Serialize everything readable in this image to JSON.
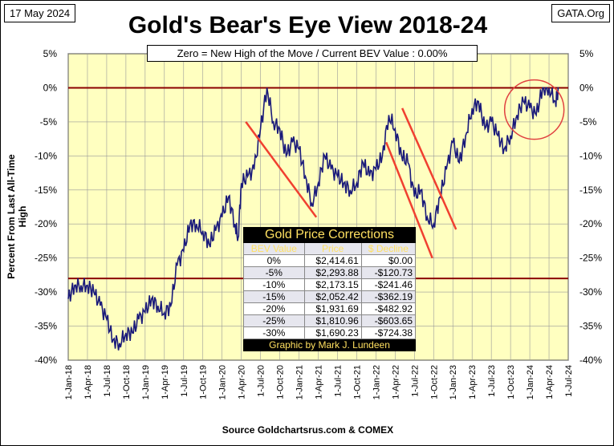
{
  "date": "17 May 2024",
  "source_org": "GATA.Org",
  "source": "Source Goldchartsrus.com & COMEX",
  "chart_data": {
    "type": "line",
    "title": "Gold's Bear's Eye View 2018-24",
    "subtitle": "Zero = New High of the Move / Current  BEV Value : 0.00%",
    "ylabel": "Percent  From  Last  All-Time  High",
    "ylim": [
      -40,
      5
    ],
    "yticks": [
      "5%",
      "0%",
      "-5%",
      "-10%",
      "-15%",
      "-20%",
      "-25%",
      "-30%",
      "-35%",
      "-40%"
    ],
    "xticks": [
      "1-Jan-18",
      "1-Apr-18",
      "1-Jul-18",
      "1-Oct-18",
      "1-Jan-19",
      "1-Apr-19",
      "1-Jul-19",
      "1-Oct-19",
      "1-Jan-20",
      "1-Apr-20",
      "1-Jul-20",
      "1-Oct-20",
      "1-Jan-21",
      "1-Apr-21",
      "1-Jul-21",
      "1-Oct-21",
      "1-Jan-22",
      "1-Apr-22",
      "1-Jul-22",
      "1-Oct-22",
      "1-Jan-23",
      "1-Apr-23",
      "1-Jul-23",
      "1-Oct-23",
      "1-Jan-24",
      "1-Apr-24",
      "1-Jul-24"
    ],
    "x_months_from_jan18": [
      0,
      1,
      2,
      3,
      4,
      5,
      6,
      7,
      8,
      9,
      10,
      11,
      12,
      13,
      14,
      15,
      16,
      17,
      18,
      19,
      20,
      21,
      22,
      23,
      24,
      25,
      26,
      26.5,
      27,
      28,
      29,
      30,
      31,
      32,
      33,
      34,
      35,
      36,
      37,
      38,
      39,
      40,
      41,
      42,
      43,
      44,
      45,
      46,
      47,
      48,
      49,
      50,
      51,
      52,
      53,
      54,
      55,
      56,
      57,
      58,
      59,
      60,
      61,
      62,
      63,
      64,
      65,
      66,
      67,
      68,
      69,
      70,
      71,
      72,
      73,
      74,
      75,
      76,
      76.5
    ],
    "bev_percent": [
      -31,
      -29,
      -29,
      -29,
      -30,
      -32,
      -34,
      -37,
      -37.5,
      -36,
      -36,
      -34,
      -33,
      -31,
      -32,
      -33,
      -32,
      -26,
      -24,
      -20,
      -20,
      -21,
      -23,
      -21,
      -19,
      -16,
      -20,
      -22,
      -14,
      -13,
      -12,
      -6,
      0,
      -5,
      -6,
      -10,
      -8,
      -9,
      -13,
      -17,
      -14,
      -10,
      -12,
      -13,
      -14,
      -15,
      -14,
      -11,
      -13,
      -12,
      -10,
      -4,
      -6,
      -10,
      -11,
      -16,
      -15,
      -19,
      -20,
      -16,
      -12,
      -8,
      -11,
      -7,
      -3,
      -2,
      -6,
      -5,
      -7,
      -9,
      -7,
      -4,
      -2,
      -3,
      -4,
      0,
      0,
      -2,
      0
    ],
    "hlines": [
      0,
      -28
    ],
    "trend_lines": [
      [
        [
          27.7,
          -5
        ],
        [
          38.7,
          -19
        ]
      ],
      [
        [
          49.6,
          -8
        ],
        [
          56.8,
          -25
        ]
      ],
      [
        [
          52.1,
          -3
        ],
        [
          60.5,
          -20.8
        ]
      ]
    ],
    "circle": {
      "x": 72.7,
      "y": -3.2
    },
    "table": {
      "title": "Gold Price Corrections",
      "headers": [
        "BEV Value",
        "Price",
        "$ Decline"
      ],
      "rows": [
        [
          "0%",
          "$2,414.61",
          "$0.00"
        ],
        [
          "-5%",
          "$2,293.88",
          "-$120.73"
        ],
        [
          "-10%",
          "$2,173.15",
          "-$241.46"
        ],
        [
          "-15%",
          "$2,052.42",
          "-$362.19"
        ],
        [
          "-20%",
          "$1,931.69",
          "-$482.92"
        ],
        [
          "-25%",
          "$1,810.96",
          "-$603.65"
        ],
        [
          "-30%",
          "$1,690.23",
          "-$724.38"
        ]
      ],
      "footer": "Graphic by Mark J. Lundeen"
    }
  }
}
